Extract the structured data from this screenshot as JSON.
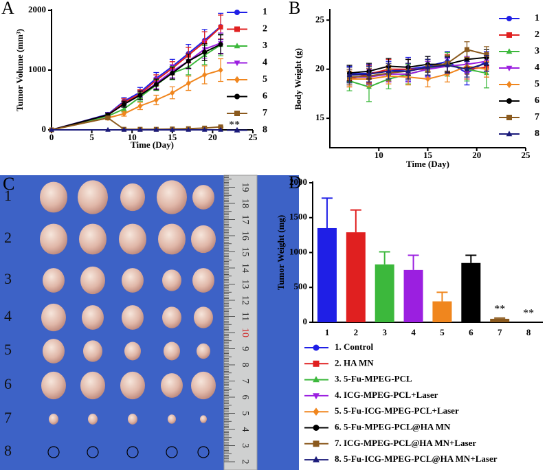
{
  "chart_data": [
    {
      "type": "line",
      "label": "A",
      "ylabel": "Tumor Volume (mm³)",
      "xlabel": "Time (Day)",
      "x": [
        0,
        7,
        9,
        11,
        13,
        15,
        17,
        19,
        21
      ],
      "xlim": [
        0,
        25
      ],
      "xticks": [
        0,
        5,
        10,
        15,
        20,
        25
      ],
      "ylim": [
        0,
        2000
      ],
      "yticks": [
        0,
        1000,
        2000
      ],
      "legend": "right",
      "annotation": "**",
      "series": [
        {
          "name": "1",
          "color": "#1f1fe6",
          "marker": "circle",
          "values": [
            0,
            260,
            480,
            630,
            860,
            1060,
            1280,
            1500,
            1730
          ],
          "errors": [
            0,
            30,
            60,
            80,
            100,
            120,
            150,
            180,
            220
          ]
        },
        {
          "name": "2",
          "color": "#e02020",
          "marker": "square",
          "values": [
            0,
            250,
            460,
            600,
            830,
            1030,
            1250,
            1470,
            1720
          ],
          "errors": [
            0,
            30,
            60,
            70,
            90,
            110,
            130,
            170,
            200
          ]
        },
        {
          "name": "3",
          "color": "#3cb83c",
          "marker": "triangle",
          "values": [
            0,
            230,
            350,
            550,
            750,
            950,
            1050,
            1250,
            1420
          ],
          "errors": [
            0,
            30,
            50,
            70,
            90,
            110,
            130,
            160,
            180
          ]
        },
        {
          "name": "4",
          "color": "#9b1fe0",
          "marker": "triangle-down",
          "values": [
            0,
            250,
            430,
            580,
            780,
            980,
            1150,
            1350,
            1450
          ],
          "errors": [
            0,
            30,
            50,
            70,
            90,
            110,
            130,
            150,
            170
          ]
        },
        {
          "name": "5",
          "color": "#f0861e",
          "marker": "diamond",
          "values": [
            0,
            200,
            270,
            400,
            500,
            620,
            780,
            920,
            1000
          ],
          "errors": [
            0,
            30,
            40,
            60,
            80,
            100,
            120,
            150,
            190
          ]
        },
        {
          "name": "6",
          "color": "#000000",
          "marker": "circle",
          "values": [
            0,
            250,
            430,
            580,
            760,
            950,
            1150,
            1300,
            1430
          ],
          "errors": [
            0,
            30,
            50,
            70,
            90,
            100,
            120,
            140,
            160
          ]
        },
        {
          "name": "7",
          "color": "#8b5a1e",
          "marker": "square",
          "values": [
            0,
            200,
            10,
            10,
            10,
            15,
            20,
            30,
            50
          ],
          "errors": [
            0,
            20,
            5,
            5,
            5,
            5,
            5,
            10,
            10
          ]
        },
        {
          "name": "8",
          "color": "#1a1a7a",
          "marker": "triangle",
          "values": [
            0,
            0,
            0,
            0,
            0,
            0,
            0,
            0,
            0
          ],
          "errors": [
            0,
            0,
            0,
            0,
            0,
            0,
            0,
            0,
            0
          ]
        }
      ]
    },
    {
      "type": "line",
      "label": "B",
      "ylabel": "Body Weight (g)",
      "xlabel": "Time (Day)",
      "x": [
        7,
        9,
        11,
        13,
        15,
        17,
        19,
        21
      ],
      "xlim": [
        5,
        25
      ],
      "xticks": [
        10,
        15,
        20,
        25
      ],
      "ylim": [
        12,
        26
      ],
      "yticks": [
        15,
        20,
        25
      ],
      "legend": "right",
      "series": [
        {
          "name": "1",
          "color": "#1f1fe6",
          "marker": "circle",
          "values": [
            19.5,
            19.6,
            19.8,
            20.0,
            20.3,
            20.8,
            19.6,
            20.8
          ],
          "errors": [
            0.8,
            0.9,
            1.0,
            1.2,
            1.0,
            1.0,
            1.2,
            1.0
          ]
        },
        {
          "name": "2",
          "color": "#e02020",
          "marker": "square",
          "values": [
            19.0,
            19.5,
            20.0,
            20.0,
            20.0,
            20.5,
            20.0,
            20.2
          ],
          "errors": [
            0.8,
            0.9,
            1.0,
            1.0,
            1.0,
            1.0,
            1.0,
            1.0
          ]
        },
        {
          "name": "3",
          "color": "#3cb83c",
          "marker": "triangle",
          "values": [
            18.8,
            18.2,
            19.0,
            19.5,
            20.0,
            20.5,
            20.0,
            19.6
          ],
          "errors": [
            1.0,
            1.5,
            1.0,
            1.0,
            1.0,
            1.2,
            1.2,
            1.5
          ]
        },
        {
          "name": "4",
          "color": "#9b1fe0",
          "marker": "triangle-down",
          "values": [
            19.2,
            19.2,
            19.5,
            19.5,
            20.0,
            20.3,
            20.5,
            20.8
          ],
          "errors": [
            0.8,
            0.8,
            0.8,
            0.8,
            0.8,
            0.8,
            0.8,
            0.8
          ]
        },
        {
          "name": "5",
          "color": "#f0861e",
          "marker": "diamond",
          "values": [
            19.0,
            19.0,
            19.3,
            19.2,
            19.0,
            19.5,
            20.3,
            20.0
          ],
          "errors": [
            0.8,
            0.8,
            0.8,
            0.8,
            0.8,
            0.8,
            0.8,
            0.8
          ]
        },
        {
          "name": "6",
          "color": "#000000",
          "marker": "circle",
          "values": [
            19.6,
            19.8,
            20.3,
            20.2,
            20.5,
            20.5,
            21.0,
            21.2
          ],
          "errors": [
            0.8,
            0.8,
            0.8,
            0.8,
            0.8,
            0.8,
            0.8,
            0.8
          ]
        },
        {
          "name": "7",
          "color": "#8b5a1e",
          "marker": "square",
          "values": [
            19.2,
            19.3,
            19.6,
            19.8,
            20.2,
            20.6,
            22.0,
            21.5
          ],
          "errors": [
            0.8,
            0.8,
            0.8,
            0.8,
            0.8,
            0.8,
            0.8,
            0.8
          ]
        },
        {
          "name": "8",
          "color": "#1a1a7a",
          "marker": "triangle",
          "values": [
            19.4,
            19.5,
            19.8,
            19.8,
            20.2,
            20.4,
            20.0,
            20.6
          ],
          "errors": [
            0.8,
            0.8,
            0.8,
            0.8,
            0.8,
            0.8,
            0.8,
            0.8
          ]
        }
      ]
    },
    {
      "type": "bar",
      "label": "D",
      "ylabel": "Tumor Weight (mg)",
      "categories": [
        "1",
        "2",
        "3",
        "4",
        "5",
        "6",
        "7",
        "8"
      ],
      "values": [
        1350,
        1290,
        830,
        750,
        300,
        850,
        50,
        0
      ],
      "errors": [
        430,
        320,
        180,
        210,
        130,
        110,
        10,
        0
      ],
      "colors": [
        "#1f1fe6",
        "#e02020",
        "#3cb83c",
        "#9b1fe0",
        "#f0861e",
        "#000000",
        "#8b5a1e",
        "#1a1a7a"
      ],
      "ylim": [
        0,
        2000
      ],
      "yticks": [
        0,
        500,
        1000,
        1500,
        2000
      ],
      "annotations": [
        "**",
        "**"
      ],
      "legend": "bottom",
      "legend_labels": [
        "1. Control",
        "2. HA MN",
        "3. 5-Fu-MPEG-PCL",
        "4. ICG-MPEG-PCL+Laser",
        "5. 5-Fu-ICG-MPEG-PCL+Laser",
        "6. 5-Fu-MPEG-PCL@HA MN",
        "7. ICG-MPEG-PCL@HA MN+Laser",
        "8. 5-Fu-ICG-MPEG-PCL@HA MN+Laser"
      ],
      "legend_markers": [
        "circle",
        "square",
        "triangle",
        "triangle-down",
        "diamond",
        "circle",
        "square",
        "triangle"
      ]
    }
  ],
  "photo": {
    "label": "C",
    "rows": [
      "1",
      "2",
      "3",
      "4",
      "5",
      "6",
      "7",
      "8"
    ],
    "ruler_numbers": [
      2,
      3,
      4,
      5,
      6,
      7,
      8,
      9,
      10,
      11,
      12,
      13,
      14,
      15,
      16,
      17,
      18,
      19
    ]
  }
}
